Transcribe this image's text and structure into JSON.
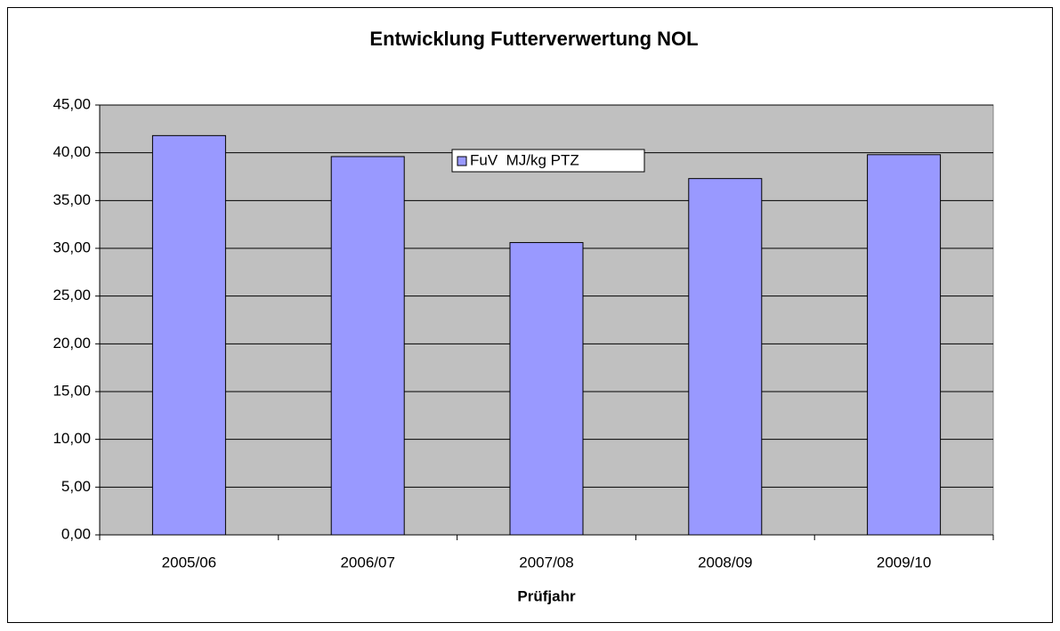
{
  "chart_data": {
    "type": "bar",
    "title": "Entwicklung Futterverwertung NOL",
    "x_label": "Prüfjahr",
    "categories": [
      "2005/06",
      "2006/07",
      "2007/08",
      "2008/09",
      "2009/10"
    ],
    "series": [
      {
        "name": "FuV  MJ/kg PTZ",
        "color": "#9999ff",
        "values": [
          41.8,
          39.6,
          30.6,
          37.3,
          39.8
        ]
      }
    ],
    "ylim": [
      0,
      45
    ],
    "yticks": [
      {
        "value": 0,
        "label": "0,00"
      },
      {
        "value": 5,
        "label": "5,00"
      },
      {
        "value": 10,
        "label": "10,00"
      },
      {
        "value": 15,
        "label": "15,00"
      },
      {
        "value": 20,
        "label": "20,00"
      },
      {
        "value": 25,
        "label": "25,00"
      },
      {
        "value": 30,
        "label": "30,00"
      },
      {
        "value": 35,
        "label": "35,00"
      },
      {
        "value": 40,
        "label": "40,00"
      },
      {
        "value": 45,
        "label": "45,00"
      }
    ],
    "grid": true,
    "legend": "top-center"
  }
}
